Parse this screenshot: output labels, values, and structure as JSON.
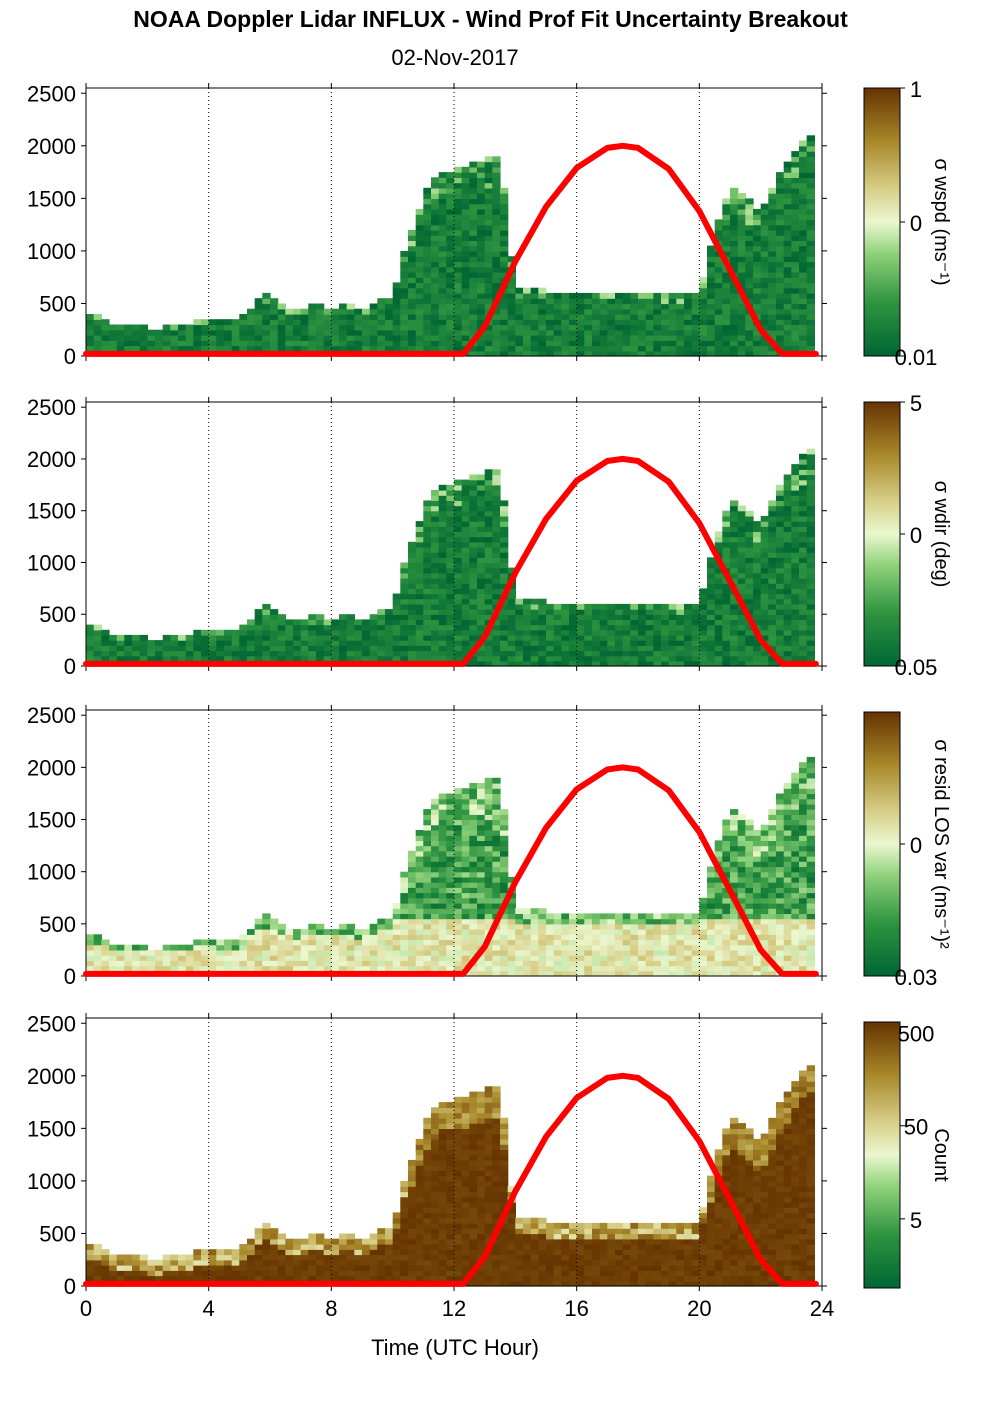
{
  "title": "NOAA Doppler Lidar INFLUX - Wind Prof Fit Uncertainty Breakout",
  "subtitle": "02-Nov-2017",
  "xlabel": "Time (UTC Hour)",
  "x_ticks": [
    "0",
    "4",
    "8",
    "12",
    "16",
    "20",
    "24"
  ],
  "y_ticks": [
    "0",
    "500",
    "1000",
    "1500",
    "2000",
    "2500"
  ],
  "colors": {
    "sun_curve": "#ff0000",
    "low": "#006633",
    "high": "#663300"
  },
  "chart_data": [
    {
      "type": "heatmap",
      "panel": "wspd",
      "colorbar_label": "σ wspd (ms⁻¹)",
      "colorbar_ticks": [
        "1",
        "0",
        "0.01"
      ],
      "colorbar_scale": "log",
      "xlim": [
        0,
        24
      ],
      "ylim": [
        0,
        2550
      ],
      "mode": "uncertainty",
      "profile_top_m": [
        [
          0,
          380
        ],
        [
          0.5,
          350
        ],
        [
          1,
          280
        ],
        [
          1.5,
          260
        ],
        [
          2,
          250
        ],
        [
          2.5,
          250
        ],
        [
          3,
          260
        ],
        [
          3.5,
          300
        ],
        [
          4,
          320
        ],
        [
          4.5,
          300
        ],
        [
          5,
          310
        ],
        [
          5.5,
          480
        ],
        [
          6,
          580
        ],
        [
          6.5,
          450
        ],
        [
          7,
          430
        ],
        [
          7.5,
          460
        ],
        [
          8,
          430
        ],
        [
          8.5,
          480
        ],
        [
          9,
          420
        ],
        [
          9.5,
          500
        ],
        [
          10,
          550
        ],
        [
          10.5,
          1100
        ],
        [
          11,
          1500
        ],
        [
          11.5,
          1750
        ],
        [
          12,
          1750
        ],
        [
          12.5,
          1800
        ],
        [
          13,
          1850
        ],
        [
          13.5,
          1900
        ],
        [
          14,
          620
        ],
        [
          15,
          600
        ],
        [
          16,
          600
        ],
        [
          17,
          600
        ],
        [
          18,
          600
        ],
        [
          19,
          570
        ],
        [
          20,
          600
        ],
        [
          20.5,
          1200
        ],
        [
          21,
          1600
        ],
        [
          21.5,
          1500
        ],
        [
          22,
          1350
        ],
        [
          22.5,
          1650
        ],
        [
          23,
          1900
        ],
        [
          23.5,
          2100
        ],
        [
          23.8,
          2100
        ]
      ]
    },
    {
      "type": "heatmap",
      "panel": "wdir",
      "colorbar_label": "σ wdir (deg)",
      "colorbar_ticks": [
        "5",
        "0",
        "0.05"
      ],
      "colorbar_scale": "log",
      "xlim": [
        0,
        24
      ],
      "ylim": [
        0,
        2550
      ],
      "mode": "uncertainty",
      "profile_top_m": [
        [
          0,
          380
        ],
        [
          0.5,
          350
        ],
        [
          1,
          280
        ],
        [
          1.5,
          260
        ],
        [
          2,
          250
        ],
        [
          2.5,
          250
        ],
        [
          3,
          260
        ],
        [
          3.5,
          300
        ],
        [
          4,
          320
        ],
        [
          4.5,
          300
        ],
        [
          5,
          310
        ],
        [
          5.5,
          480
        ],
        [
          6,
          580
        ],
        [
          6.5,
          450
        ],
        [
          7,
          430
        ],
        [
          7.5,
          460
        ],
        [
          8,
          430
        ],
        [
          8.5,
          480
        ],
        [
          9,
          420
        ],
        [
          9.5,
          500
        ],
        [
          10,
          550
        ],
        [
          10.5,
          1100
        ],
        [
          11,
          1500
        ],
        [
          11.5,
          1750
        ],
        [
          12,
          1750
        ],
        [
          12.5,
          1800
        ],
        [
          13,
          1850
        ],
        [
          13.5,
          1900
        ],
        [
          14,
          620
        ],
        [
          15,
          600
        ],
        [
          16,
          600
        ],
        [
          17,
          600
        ],
        [
          18,
          600
        ],
        [
          19,
          570
        ],
        [
          20,
          600
        ],
        [
          20.5,
          1200
        ],
        [
          21,
          1600
        ],
        [
          21.5,
          1500
        ],
        [
          22,
          1350
        ],
        [
          22.5,
          1650
        ],
        [
          23,
          1900
        ],
        [
          23.5,
          2100
        ],
        [
          23.8,
          2100
        ]
      ]
    },
    {
      "type": "heatmap",
      "panel": "resid",
      "colorbar_label": "σ resid LOS var (ms⁻¹)²",
      "colorbar_ticks": [
        "0",
        "0.03"
      ],
      "colorbar_scale": "log",
      "xlim": [
        0,
        24
      ],
      "ylim": [
        0,
        2550
      ],
      "mode": "residual",
      "profile_top_m": [
        [
          0,
          380
        ],
        [
          0.5,
          350
        ],
        [
          1,
          280
        ],
        [
          1.5,
          260
        ],
        [
          2,
          250
        ],
        [
          2.5,
          250
        ],
        [
          3,
          260
        ],
        [
          3.5,
          300
        ],
        [
          4,
          320
        ],
        [
          4.5,
          300
        ],
        [
          5,
          310
        ],
        [
          5.5,
          480
        ],
        [
          6,
          580
        ],
        [
          6.5,
          450
        ],
        [
          7,
          430
        ],
        [
          7.5,
          460
        ],
        [
          8,
          430
        ],
        [
          8.5,
          480
        ],
        [
          9,
          420
        ],
        [
          9.5,
          500
        ],
        [
          10,
          550
        ],
        [
          10.5,
          1100
        ],
        [
          11,
          1500
        ],
        [
          11.5,
          1750
        ],
        [
          12,
          1750
        ],
        [
          12.5,
          1800
        ],
        [
          13,
          1850
        ],
        [
          13.5,
          1900
        ],
        [
          14,
          620
        ],
        [
          15,
          600
        ],
        [
          16,
          600
        ],
        [
          17,
          600
        ],
        [
          18,
          600
        ],
        [
          19,
          570
        ],
        [
          20,
          600
        ],
        [
          20.5,
          1200
        ],
        [
          21,
          1600
        ],
        [
          21.5,
          1500
        ],
        [
          22,
          1350
        ],
        [
          22.5,
          1650
        ],
        [
          23,
          1900
        ],
        [
          23.5,
          2100
        ],
        [
          23.8,
          2100
        ]
      ]
    },
    {
      "type": "heatmap",
      "panel": "count",
      "colorbar_label": "Count",
      "colorbar_ticks": [
        "500",
        "50",
        "5"
      ],
      "colorbar_scale": "log",
      "xlim": [
        0,
        24
      ],
      "ylim": [
        0,
        2550
      ],
      "mode": "count",
      "profile_top_m": [
        [
          0,
          380
        ],
        [
          0.5,
          350
        ],
        [
          1,
          280
        ],
        [
          1.5,
          260
        ],
        [
          2,
          250
        ],
        [
          2.5,
          250
        ],
        [
          3,
          260
        ],
        [
          3.5,
          300
        ],
        [
          4,
          320
        ],
        [
          4.5,
          300
        ],
        [
          5,
          310
        ],
        [
          5.5,
          480
        ],
        [
          6,
          580
        ],
        [
          6.5,
          450
        ],
        [
          7,
          430
        ],
        [
          7.5,
          460
        ],
        [
          8,
          430
        ],
        [
          8.5,
          480
        ],
        [
          9,
          420
        ],
        [
          9.5,
          500
        ],
        [
          10,
          550
        ],
        [
          10.5,
          1100
        ],
        [
          11,
          1500
        ],
        [
          11.5,
          1750
        ],
        [
          12,
          1750
        ],
        [
          12.5,
          1800
        ],
        [
          13,
          1850
        ],
        [
          13.5,
          1900
        ],
        [
          14,
          620
        ],
        [
          15,
          600
        ],
        [
          16,
          600
        ],
        [
          17,
          600
        ],
        [
          18,
          600
        ],
        [
          19,
          570
        ],
        [
          20,
          600
        ],
        [
          20.5,
          1200
        ],
        [
          21,
          1600
        ],
        [
          21.5,
          1500
        ],
        [
          22,
          1350
        ],
        [
          22.5,
          1650
        ],
        [
          23,
          1900
        ],
        [
          23.5,
          2100
        ],
        [
          23.8,
          2100
        ]
      ]
    }
  ],
  "sun_curve": {
    "type": "line",
    "color": "#ff0000",
    "x": [
      0,
      12.3,
      13,
      14,
      15,
      16,
      17,
      17.5,
      18,
      19,
      20,
      21,
      22,
      22.7,
      23.8
    ],
    "y": [
      20,
      20,
      280,
      900,
      1420,
      1790,
      1980,
      2000,
      1980,
      1780,
      1380,
      820,
      250,
      20,
      20
    ]
  }
}
